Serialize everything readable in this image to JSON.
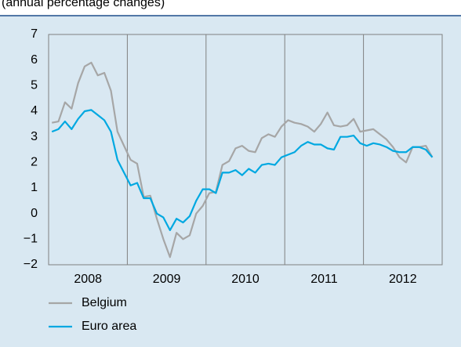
{
  "chart_data": {
    "type": "line",
    "subtitle": "(annual percentage changes)",
    "x": [
      2008.042,
      2008.125,
      2008.208,
      2008.292,
      2008.375,
      2008.458,
      2008.542,
      2008.625,
      2008.708,
      2008.792,
      2008.875,
      2008.958,
      2009.042,
      2009.125,
      2009.208,
      2009.292,
      2009.375,
      2009.458,
      2009.542,
      2009.625,
      2009.708,
      2009.792,
      2009.875,
      2009.958,
      2010.042,
      2010.125,
      2010.208,
      2010.292,
      2010.375,
      2010.458,
      2010.542,
      2010.625,
      2010.708,
      2010.792,
      2010.875,
      2010.958,
      2011.042,
      2011.125,
      2011.208,
      2011.292,
      2011.375,
      2011.458,
      2011.542,
      2011.625,
      2011.708,
      2011.792,
      2011.875,
      2011.958,
      2012.042,
      2012.125,
      2012.208,
      2012.292,
      2012.375,
      2012.458,
      2012.542,
      2012.625,
      2012.708,
      2012.792,
      2012.875
    ],
    "series": [
      {
        "name": "Belgium",
        "color": "#a6a6a6",
        "values": [
          3.55,
          3.6,
          4.35,
          4.1,
          5.1,
          5.75,
          5.9,
          5.4,
          5.5,
          4.8,
          3.2,
          2.65,
          2.1,
          1.95,
          0.65,
          0.7,
          -0.2,
          -1.0,
          -1.7,
          -0.75,
          -1.0,
          -0.85,
          0.0,
          0.3,
          0.8,
          0.85,
          1.9,
          2.05,
          2.55,
          2.65,
          2.45,
          2.4,
          2.95,
          3.1,
          3.0,
          3.4,
          3.65,
          3.55,
          3.5,
          3.4,
          3.2,
          3.5,
          3.95,
          3.45,
          3.4,
          3.45,
          3.7,
          3.2,
          3.25,
          3.3,
          3.1,
          2.9,
          2.6,
          2.2,
          2.0,
          2.6,
          2.6,
          2.65,
          2.2
        ]
      },
      {
        "name": "Euro area",
        "color": "#00a8e1",
        "values": [
          3.2,
          3.3,
          3.6,
          3.3,
          3.7,
          4.0,
          4.05,
          3.85,
          3.65,
          3.2,
          2.1,
          1.6,
          1.1,
          1.2,
          0.6,
          0.6,
          0.0,
          -0.15,
          -0.65,
          -0.2,
          -0.35,
          -0.1,
          0.5,
          0.95,
          0.95,
          0.8,
          1.6,
          1.6,
          1.7,
          1.5,
          1.75,
          1.6,
          1.9,
          1.95,
          1.9,
          2.2,
          2.3,
          2.4,
          2.65,
          2.8,
          2.7,
          2.7,
          2.55,
          2.5,
          3.0,
          3.0,
          3.05,
          2.75,
          2.65,
          2.75,
          2.7,
          2.6,
          2.45,
          2.4,
          2.4,
          2.6,
          2.6,
          2.5,
          2.2
        ]
      }
    ],
    "xlim": [
      2008,
      2013
    ],
    "xticks": [
      {
        "value": 2008.5,
        "label": "2008"
      },
      {
        "value": 2009.5,
        "label": "2009"
      },
      {
        "value": 2010.5,
        "label": "2010"
      },
      {
        "value": 2011.5,
        "label": "2011"
      },
      {
        "value": 2012.5,
        "label": "2012"
      }
    ],
    "xgrid": [
      2009,
      2010,
      2011,
      2012
    ],
    "ylim": [
      -2,
      7
    ],
    "yticks": [
      {
        "value": -2,
        "label": "−2"
      },
      {
        "value": -1,
        "label": "−1"
      },
      0,
      1,
      2,
      3,
      4,
      5,
      6,
      7
    ],
    "legend": "bottom-left"
  }
}
